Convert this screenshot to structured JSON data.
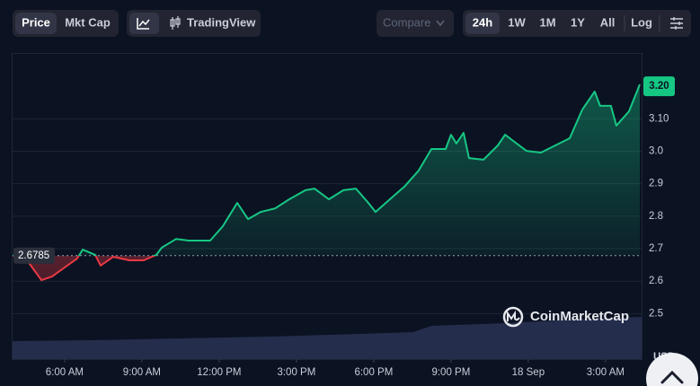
{
  "toolbar": {
    "views": [
      "Price",
      "Mkt Cap"
    ],
    "tradingview": "TradingView",
    "compare": "Compare",
    "ranges": [
      "24h",
      "1W",
      "1M",
      "1Y",
      "All"
    ],
    "log": "Log"
  },
  "watermark": "CoinMarketCap",
  "currency": "USD",
  "chart_data": {
    "type": "line",
    "x": [
      3.98,
      4.54,
      5.1,
      5.51,
      6.0,
      6.49,
      6.7,
      7.19,
      7.4,
      7.89,
      8.51,
      9.07,
      9.56,
      9.77,
      10.33,
      10.82,
      11.65,
      12.14,
      12.7,
      13.12,
      13.61,
      14.17,
      14.72,
      15.35,
      15.7,
      16.26,
      16.82,
      17.31,
      17.79,
      18.07,
      18.63,
      19.19,
      19.75,
      20.24,
      20.79,
      21.0,
      21.21,
      21.49,
      21.7,
      22.26,
      22.82,
      23.1,
      23.65,
      23.93,
      24.49,
      25.05,
      25.61,
      26.1,
      26.58,
      26.79,
      27.21,
      27.42,
      27.91,
      28.33
    ],
    "values": [
      2.679,
      2.664,
      2.603,
      2.614,
      2.642,
      2.67,
      2.697,
      2.681,
      2.648,
      2.675,
      2.664,
      2.664,
      2.681,
      2.703,
      2.73,
      2.725,
      2.725,
      2.769,
      2.841,
      2.791,
      2.813,
      2.824,
      2.852,
      2.88,
      2.885,
      2.852,
      2.88,
      2.885,
      2.841,
      2.813,
      2.852,
      2.891,
      2.941,
      3.007,
      3.007,
      3.051,
      3.024,
      3.057,
      2.979,
      2.974,
      3.018,
      3.051,
      3.018,
      3.001,
      2.996,
      3.018,
      3.04,
      3.129,
      3.184,
      3.14,
      3.14,
      3.079,
      3.123,
      3.206
    ],
    "color_up": "#16c784",
    "color_down": "#ea3943",
    "baseline": 2.6785,
    "last_price": {
      "value": 3.2,
      "label": "3.20"
    },
    "xlim": [
      3.98,
      28.4
    ],
    "xticks": [
      {
        "value": 6,
        "label": "6:00 AM"
      },
      {
        "value": 9,
        "label": "9:00 AM"
      },
      {
        "value": 12,
        "label": "12:00 PM"
      },
      {
        "value": 15,
        "label": "3:00 PM"
      },
      {
        "value": 18,
        "label": "6:00 PM"
      },
      {
        "value": 21,
        "label": "9:00 PM"
      },
      {
        "value": 24,
        "label": "18 Sep"
      },
      {
        "value": 27,
        "label": "3:00 AM"
      }
    ],
    "ylim": [
      2.36,
      3.3
    ],
    "yticks": [
      2.5,
      2.6,
      2.7,
      2.8,
      2.9,
      {
        "value": 3,
        "label": "3.0"
      },
      {
        "value": 3.1,
        "label": "3.10"
      }
    ],
    "grid": true
  }
}
